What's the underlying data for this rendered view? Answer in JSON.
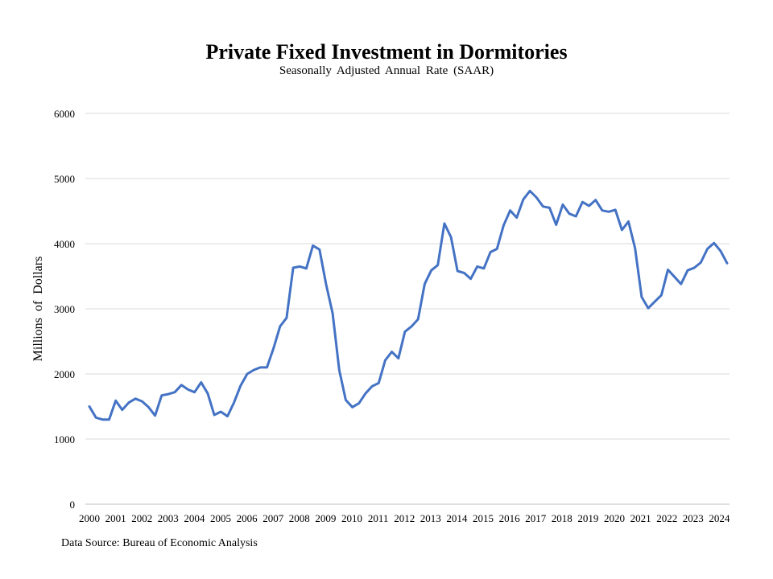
{
  "chart_data": {
    "type": "line",
    "title": "Private Fixed Investment in Dormitories",
    "subtitle": "Seasonally Adjusted Annual Rate (SAAR)",
    "ylabel": "Millions of Dollars",
    "xlabel": "",
    "source": "Data Source: Bureau of Economic Analysis",
    "ylim": [
      0,
      6000
    ],
    "yticks": [
      0,
      1000,
      2000,
      3000,
      4000,
      5000,
      6000
    ],
    "xticks": [
      "2000",
      "2001",
      "2002",
      "2003",
      "2004",
      "2005",
      "2006",
      "2007",
      "2008",
      "2009",
      "2010",
      "2011",
      "2012",
      "2013",
      "2014",
      "2015",
      "2016",
      "2017",
      "2018",
      "2019",
      "2020",
      "2021",
      "2022",
      "2023",
      "2024"
    ],
    "grid": true,
    "line_color": "#4472C4",
    "series": [
      {
        "values": [
          1500,
          1330,
          1300,
          1300,
          1590,
          1450,
          1560,
          1620,
          1580,
          1490,
          1360,
          1670,
          1690,
          1720,
          1830,
          1760,
          1720,
          1870,
          1700,
          1370,
          1420,
          1350,
          1560,
          1820,
          2000,
          2060,
          2100,
          2100,
          2390,
          2730,
          2860,
          3630,
          3650,
          3620,
          3970,
          3910,
          3380,
          2930,
          2060,
          1600,
          1490,
          1550,
          1700,
          1810,
          1860,
          2210,
          2340,
          2240,
          2650,
          2730,
          2840,
          3380,
          3590,
          3670,
          4310,
          4100,
          3580,
          3550,
          3460,
          3650,
          3620,
          3870,
          3920,
          4280,
          4510,
          4400,
          4680,
          4810,
          4710,
          4570,
          4550,
          4290,
          4600,
          4460,
          4420,
          4640,
          4580,
          4670,
          4510,
          4490,
          4520,
          4210,
          4340,
          3930,
          3180,
          3010,
          3110,
          3210,
          3600,
          3490,
          3380,
          3590,
          3630,
          3710,
          3920,
          4010,
          3890,
          3700
        ]
      }
    ]
  }
}
